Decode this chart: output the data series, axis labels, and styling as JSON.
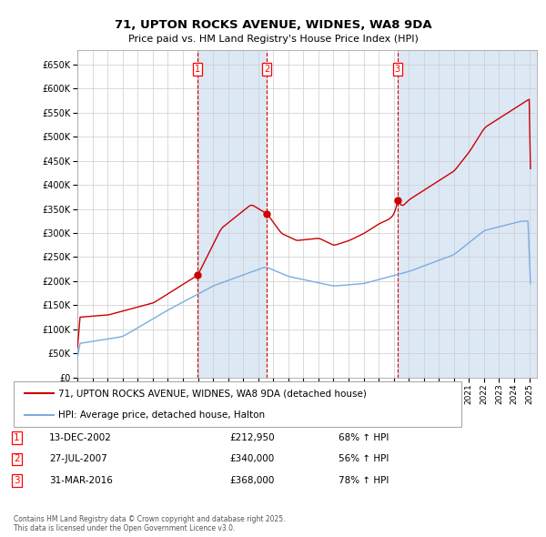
{
  "title": "71, UPTON ROCKS AVENUE, WIDNES, WA8 9DA",
  "subtitle": "Price paid vs. HM Land Registry's House Price Index (HPI)",
  "hpi_label": "HPI: Average price, detached house, Halton",
  "property_label": "71, UPTON ROCKS AVENUE, WIDNES, WA8 9DA (detached house)",
  "transactions": [
    {
      "num": 1,
      "date": "13-DEC-2002",
      "price": 212950,
      "pct": "68%",
      "dir": "↑",
      "year": 2002.95
    },
    {
      "num": 2,
      "date": "27-JUL-2007",
      "price": 340000,
      "pct": "56%",
      "dir": "↑",
      "year": 2007.57
    },
    {
      "num": 3,
      "date": "31-MAR-2016",
      "price": 368000,
      "pct": "78%",
      "dir": "↑",
      "year": 2016.25
    }
  ],
  "background_color": "#ffffff",
  "grid_color": "#cccccc",
  "property_line_color": "#cc0000",
  "hpi_line_color": "#7aace0",
  "vline_color": "#cc0000",
  "shade_color": "#dde8f5",
  "footer": "Contains HM Land Registry data © Crown copyright and database right 2025.\nThis data is licensed under the Open Government Licence v3.0.",
  "ylim": [
    0,
    680000
  ],
  "yticks": [
    0,
    50000,
    100000,
    150000,
    200000,
    250000,
    300000,
    350000,
    400000,
    450000,
    500000,
    550000,
    600000,
    650000
  ],
  "xlim_start": 1995.0,
  "xlim_end": 2025.5
}
